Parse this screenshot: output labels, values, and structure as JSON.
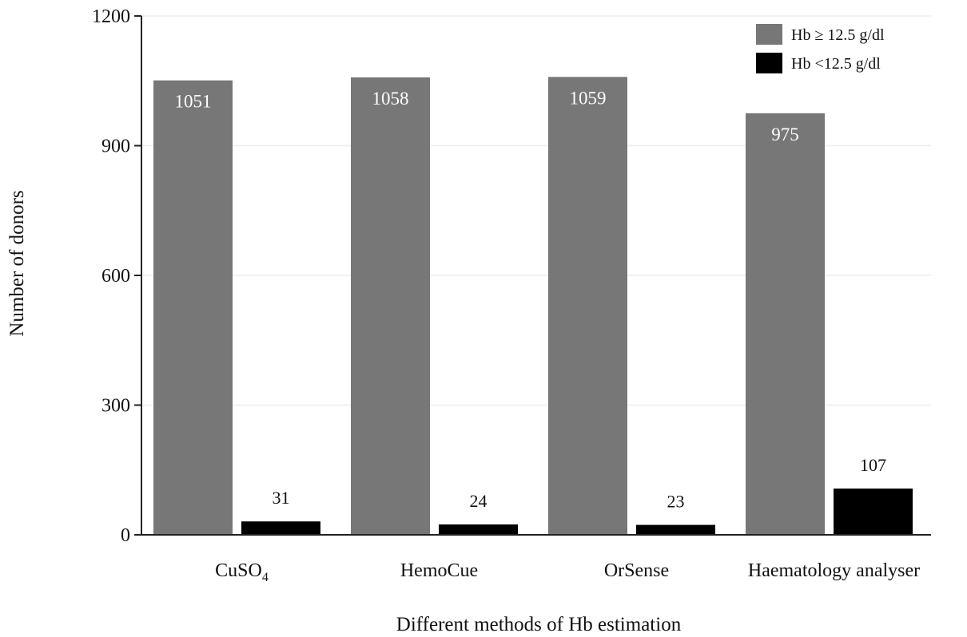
{
  "chart_data": {
    "type": "bar",
    "categories": [
      "CuSO4",
      "HemoCue",
      "OrSense",
      "Haematology analyser"
    ],
    "category_display": [
      {
        "main": "CuSO",
        "sub": "4"
      },
      {
        "main": "HemoCue",
        "sub": ""
      },
      {
        "main": "OrSense",
        "sub": ""
      },
      {
        "main": "Haematology analyser",
        "sub": ""
      }
    ],
    "series": [
      {
        "name": "Hb ≥ 12.5 g/dl",
        "values": [
          1051,
          1058,
          1059,
          975
        ],
        "color": "#777777"
      },
      {
        "name": "Hb <12.5 g/dl",
        "values": [
          31,
          24,
          23,
          107
        ],
        "color": "#000000"
      }
    ],
    "title": "",
    "xlabel": "Different methods of Hb estimation",
    "ylabel": "Number of donors",
    "ylim": [
      0,
      1200
    ],
    "yticks": [
      0,
      300,
      600,
      900,
      1200
    ],
    "grid": true,
    "legend_position": "top-right"
  }
}
